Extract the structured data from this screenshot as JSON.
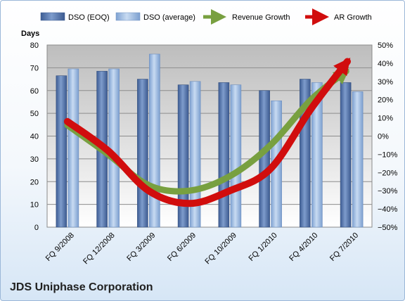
{
  "chart_data": {
    "type": "bar",
    "company": "JDS Uniphase Corporation",
    "left_axis_label": "Days",
    "categories": [
      "FQ 9/2008",
      "FQ 12/2008",
      "FQ 3/2009",
      "FQ 6/2009",
      "FQ 10/2009",
      "FQ 1/2010",
      "FQ 4/2010",
      "FQ 7/2010"
    ],
    "bar_series": [
      {
        "name": "DSO (EOQ)",
        "values": [
          66.5,
          68.5,
          65,
          62.5,
          63.5,
          60,
          65,
          63.5
        ],
        "color": "#4f6fa8"
      },
      {
        "name": "DSO (average)",
        "values": [
          69.5,
          69.5,
          76,
          64,
          62.5,
          55.5,
          63.5,
          59.5
        ],
        "color": "#8fb0dc"
      }
    ],
    "line_series": [
      {
        "name": "Revenue Growth",
        "values": [
          6,
          -10,
          -27,
          -30,
          -22,
          -5,
          20,
          38
        ],
        "color": "#78a040"
      },
      {
        "name": "AR Growth",
        "values": [
          8,
          -8,
          -30,
          -37,
          -30,
          -18,
          15,
          44
        ],
        "color": "#d10d0d"
      }
    ],
    "left_axis": {
      "min": 0,
      "max": 80,
      "step": 10
    },
    "right_axis": {
      "min": -50,
      "max": 50,
      "step": 10,
      "format": "percent"
    },
    "legend_position": "top",
    "grid": "horizontal"
  }
}
